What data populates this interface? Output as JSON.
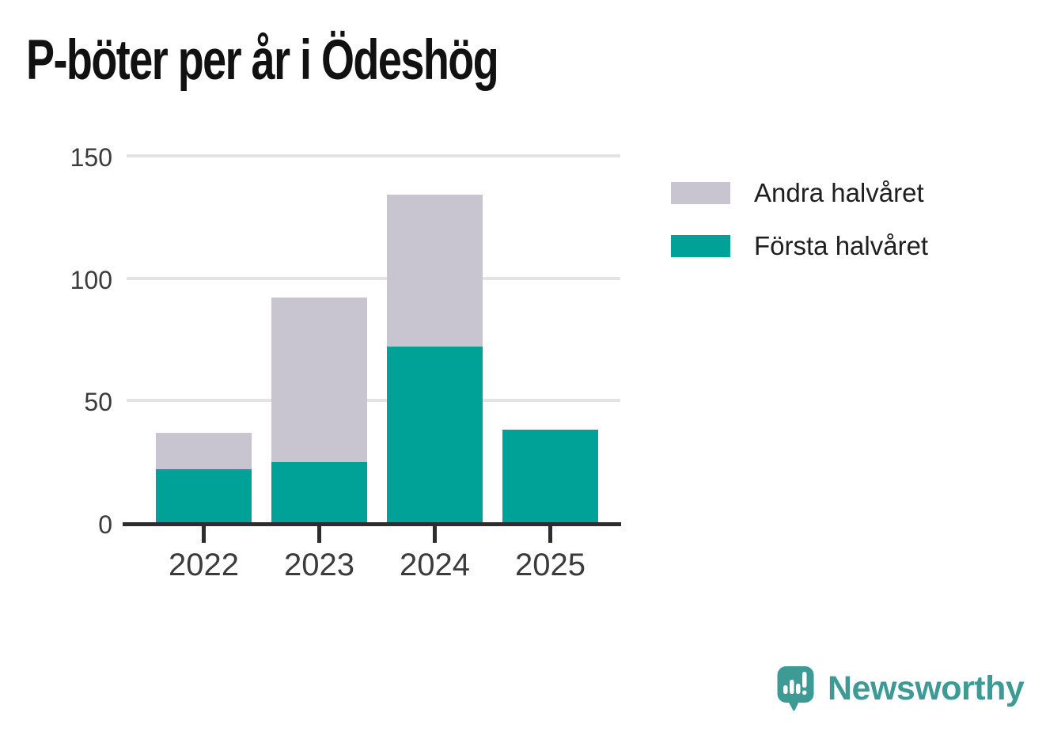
{
  "title": "P-böter per år i Ödeshög",
  "chart_data": {
    "type": "bar",
    "stacked": true,
    "categories": [
      "2022",
      "2023",
      "2024",
      "2025"
    ],
    "series": [
      {
        "name": "Första halvåret",
        "color": "#00a297",
        "values": [
          22,
          25,
          72,
          38
        ]
      },
      {
        "name": "Andra halvåret",
        "color": "#c8c5d1",
        "values": [
          15,
          67,
          62,
          0
        ]
      }
    ],
    "title": "P-böter per år i Ödeshög",
    "xlabel": "",
    "ylabel": "",
    "ylim": [
      0,
      150
    ],
    "yticks": [
      0,
      50,
      100,
      150
    ],
    "grid": true,
    "legend_position": "right"
  },
  "legend": {
    "items": [
      {
        "label": "Andra halvåret",
        "color": "#c8c5d1"
      },
      {
        "label": "Första halvåret",
        "color": "#00a297"
      }
    ]
  },
  "branding": {
    "wordmark": "Newsworthy",
    "color": "#3d9a94"
  },
  "colors": {
    "first_half": "#00a297",
    "second_half": "#c8c5d1",
    "axis": "#2d2d2d",
    "grid": "#e3e3e3",
    "tick_label": "#3b3b3b",
    "title": "#111111",
    "background": "#ffffff"
  }
}
